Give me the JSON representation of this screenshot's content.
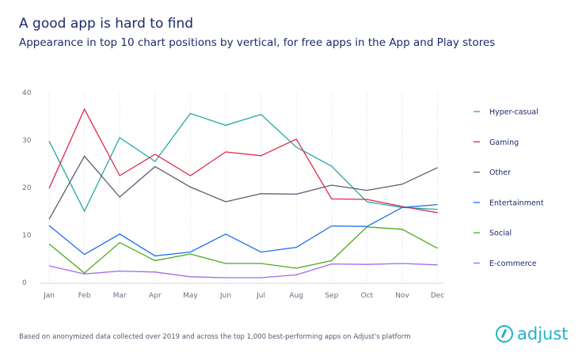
{
  "title": "A good app is hard to find",
  "subtitle": "Appearance in top 10 chart positions by vertical, for free apps in the App and Play stores",
  "footnote": "Based on anonymized data collected over 2019 and across the top 1,000 best-performing apps on Adjust's platform",
  "logo": "adjust",
  "chart_data": {
    "type": "line",
    "categories": [
      "Jan",
      "Feb",
      "Mar",
      "Apr",
      "May",
      "Jun",
      "Jul",
      "Aug",
      "Sep",
      "Oct",
      "Nov",
      "Dec"
    ],
    "ylim": [
      0,
      40
    ],
    "yticks": [
      "0",
      "10",
      "20",
      "30",
      "40"
    ],
    "grid": "vertical dotted",
    "legend": "right",
    "series": [
      {
        "name": "Hyper-casual",
        "color": "#22aaa8",
        "values": [
          29.8,
          15,
          30.5,
          25.5,
          35.6,
          33.1,
          35.4,
          28.5,
          24.5,
          17,
          15.8,
          15.4
        ]
      },
      {
        "name": "Gaming",
        "color": "#e0284a",
        "values": [
          19.8,
          36.5,
          22.5,
          27,
          22.5,
          27.5,
          26.7,
          30.2,
          17.6,
          17.5,
          16,
          14.7
        ]
      },
      {
        "name": "Other",
        "color": "#5c5c72",
        "values": [
          13.3,
          26.6,
          18,
          24.4,
          20.1,
          17,
          18.7,
          18.6,
          20.5,
          19.4,
          20.7,
          24.2
        ]
      },
      {
        "name": "Entertainment",
        "color": "#1a6ff0",
        "values": [
          12,
          5.9,
          10.2,
          5.6,
          6.4,
          10.2,
          6.4,
          7.4,
          11.9,
          11.8,
          15.8,
          16.4
        ]
      },
      {
        "name": "Social",
        "color": "#4caa18",
        "values": [
          8.1,
          2,
          8.4,
          4.6,
          6,
          4,
          4,
          3,
          4.6,
          11.7,
          11.2,
          7.2
        ]
      },
      {
        "name": "E-commerce",
        "color": "#a06af0",
        "values": [
          3.5,
          1.8,
          2.4,
          2.2,
          1.2,
          1,
          1,
          1.6,
          3.9,
          3.8,
          4,
          3.7
        ]
      }
    ]
  }
}
